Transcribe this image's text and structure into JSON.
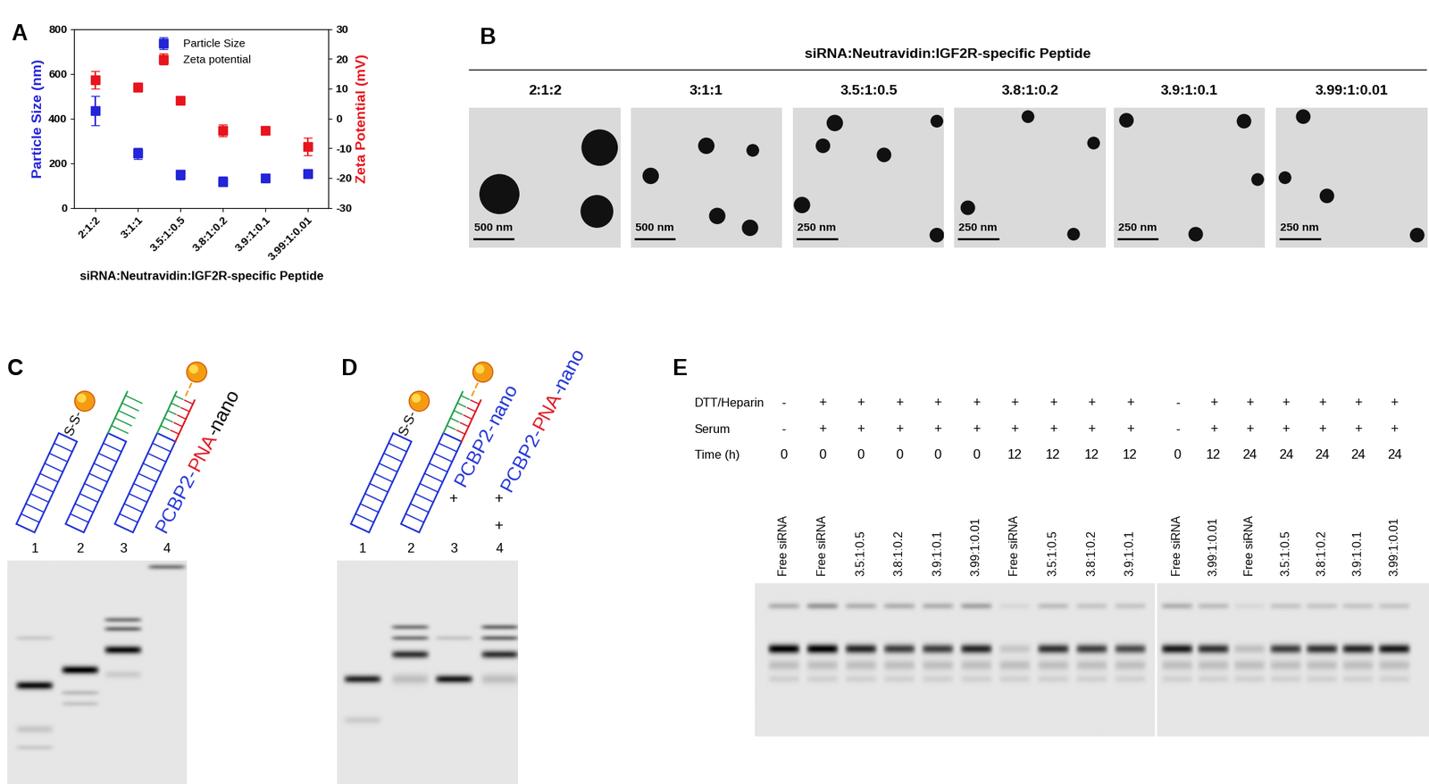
{
  "chart_data": {
    "type": "scatter",
    "panel_label": "A",
    "x_label": "siRNA:Neutravidin:IGF2R-specific Peptide",
    "y_label": "Particle Size (nm)",
    "y2_label": "Zeta Potential (mV)",
    "categories": [
      "2:1:2",
      "3:1:1",
      "3.5:1:0.5",
      "3.8:1:0.2",
      "3.9:1:0.1",
      "3.99:1:0.01"
    ],
    "series": [
      {
        "name": "Particle Size",
        "color": "#2424d8",
        "marker": "square",
        "values": [
          435,
          243,
          148,
          118,
          133,
          152
        ],
        "errors": [
          65,
          25,
          20,
          20,
          12,
          20
        ]
      },
      {
        "name": "Zeta potential",
        "color": "#e8141c",
        "marker": "square",
        "axis": "y2",
        "values": [
          13,
          10.5,
          6,
          -4,
          -4,
          -9.5
        ],
        "errors": [
          3,
          1.5,
          1,
          2,
          1,
          3
        ]
      }
    ],
    "ylim": [
      0,
      800
    ],
    "yticks": [
      0,
      200,
      400,
      600,
      800
    ],
    "y2lim": [
      -30,
      30
    ],
    "y2ticks": [
      -30,
      -20,
      -10,
      0,
      10,
      20,
      30
    ],
    "legend": "upper center"
  },
  "panel_B": {
    "label": "B",
    "title": "siRNA:Neutravidin:IGF2R-specific Peptide",
    "images": [
      {
        "ratio": "2:1:2",
        "scale_bar": "500 nm"
      },
      {
        "ratio": "3:1:1",
        "scale_bar": "500 nm"
      },
      {
        "ratio": "3.5:1:0.5",
        "scale_bar": "250 nm"
      },
      {
        "ratio": "3.8:1:0.2",
        "scale_bar": "250 nm"
      },
      {
        "ratio": "3.9:1:0.1",
        "scale_bar": "250 nm"
      },
      {
        "ratio": "3.99:1:0.01",
        "scale_bar": "250 nm"
      }
    ]
  },
  "panel_C": {
    "label": "C",
    "linker": "S-S-",
    "construct": [
      {
        "text": "PCBP2-",
        "color": "#1c2fd6"
      },
      {
        "text": "PNA",
        "color": "#e0141e"
      },
      {
        "text": "-nano",
        "color": "#000000"
      }
    ],
    "lanes": [
      "1",
      "2",
      "3",
      "4"
    ]
  },
  "panel_D": {
    "label": "D",
    "linker": "S-S-",
    "constructs": [
      [
        {
          "text": "PCBP2-",
          "color": "#1c2fd6"
        },
        {
          "text": "nano",
          "color": "#1c2fd6"
        }
      ],
      [
        {
          "text": "PCBP2-",
          "color": "#1c2fd6"
        },
        {
          "text": "PNA",
          "color": "#e0141e"
        },
        {
          "text": "-nano",
          "color": "#1c2fd6"
        }
      ]
    ],
    "plus_rows": [
      [
        null,
        null,
        "+",
        "+"
      ],
      [
        null,
        null,
        null,
        "+"
      ]
    ],
    "lanes": [
      "1",
      "2",
      "3",
      "4"
    ]
  },
  "panel_E": {
    "label": "E",
    "row_names": [
      "DTT/Heparin",
      "Serum",
      "Time (h)"
    ],
    "gels": [
      {
        "lanes": [
          {
            "label": "Free siRNA",
            "cells": [
              "-",
              "-",
              0
            ]
          },
          {
            "label": "Free siRNA",
            "cells": [
              "+",
              "+",
              0
            ]
          },
          {
            "label": "3.5:1:0.5",
            "cells": [
              "+",
              "+",
              0
            ]
          },
          {
            "label": "3.8:1:0.2",
            "cells": [
              "+",
              "+",
              0
            ]
          },
          {
            "label": "3.9:1:0.1",
            "cells": [
              "+",
              "+",
              0
            ]
          },
          {
            "label": "3.99:1:0.01",
            "cells": [
              "+",
              "+",
              0
            ]
          },
          {
            "label": "Free siRNA",
            "cells": [
              "+",
              "+",
              12
            ]
          },
          {
            "label": "3.5:1:0.5",
            "cells": [
              "+",
              "+",
              12
            ]
          },
          {
            "label": "3.8:1:0.2",
            "cells": [
              "+",
              "+",
              12
            ]
          },
          {
            "label": "3.9:1:0.1",
            "cells": [
              "+",
              "+",
              12
            ]
          }
        ]
      },
      {
        "lanes": [
          {
            "label": "Free siRNA",
            "cells": [
              "-",
              "-",
              0
            ]
          },
          {
            "label": "3.99:1:0.01",
            "cells": [
              "+",
              "+",
              12
            ]
          },
          {
            "label": "Free siRNA",
            "cells": [
              "+",
              "+",
              24
            ]
          },
          {
            "label": "3.5:1:0.5",
            "cells": [
              "+",
              "+",
              24
            ]
          },
          {
            "label": "3.8:1:0.2",
            "cells": [
              "+",
              "+",
              24
            ]
          },
          {
            "label": "3.9:1:0.1",
            "cells": [
              "+",
              "+",
              24
            ]
          },
          {
            "label": "3.99:1:0.01",
            "cells": [
              "+",
              "+",
              24
            ]
          }
        ]
      }
    ]
  }
}
